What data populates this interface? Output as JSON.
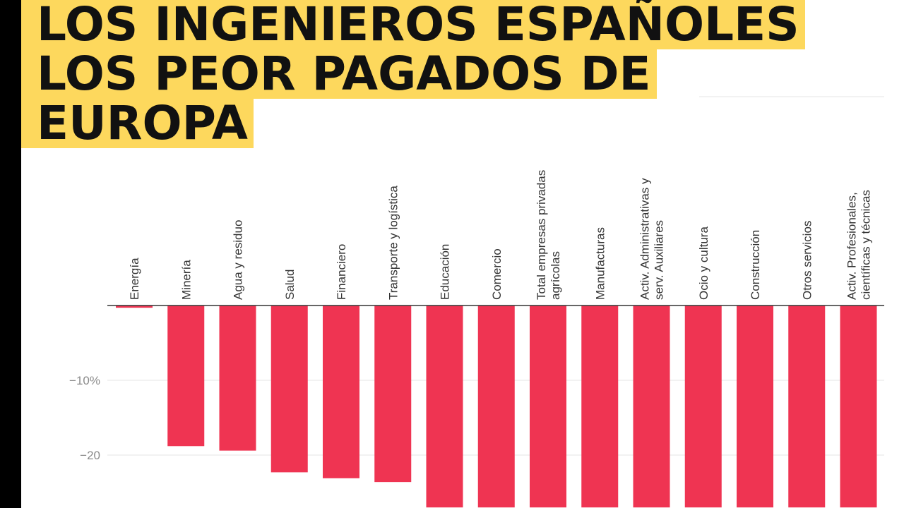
{
  "title_lines": [
    "LOS INGENIEROS ESPAÑOLES",
    "LOS PEOR PAGADOS DE",
    "EUROPA"
  ],
  "colors": {
    "bar": "#ef3452",
    "title_bg": "#fdd85d",
    "title_text": "#111111"
  },
  "chart_data": {
    "type": "bar",
    "title": "LOS INGENIEROS ESPAÑOLES LOS PEOR PAGADOS DE EUROPA",
    "xlabel": "",
    "ylabel": "",
    "grid": true,
    "y_tick_values": [
      -10,
      -20
    ],
    "y_tick_labels": [
      "−10%",
      "−20"
    ],
    "ylim": [
      -27,
      0
    ],
    "categories": [
      [
        "Energía"
      ],
      [
        "Minería"
      ],
      [
        "Agua y residuo"
      ],
      [
        "Salud"
      ],
      [
        "Financiero"
      ],
      [
        "Transporte y logística"
      ],
      [
        "Educación"
      ],
      [
        "Comercio"
      ],
      [
        "Total empresas privadas",
        "agrícolas"
      ],
      [
        "Manufacturas"
      ],
      [
        "Activ. Administrativas y",
        "serv. Auxiliares"
      ],
      [
        "Ocio y cultura"
      ],
      [
        "Construcción"
      ],
      [
        "Otros servicios"
      ],
      [
        "Activ. Profesionales,",
        "científicas y técnicas"
      ]
    ],
    "values": [
      -0.3,
      -18.8,
      -19.4,
      -22.3,
      -23.1,
      -23.6,
      -27,
      -27,
      -27,
      -27,
      -27,
      -27,
      -27,
      -27,
      -27
    ]
  }
}
